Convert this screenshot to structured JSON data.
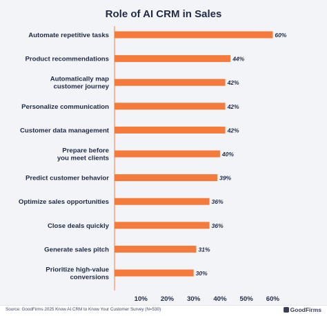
{
  "chart_data": {
    "type": "bar",
    "orientation": "horizontal",
    "title": "Role of AI CRM in Sales",
    "categories": [
      [
        "Automate repetitive tasks"
      ],
      [
        "Product recommendations"
      ],
      [
        "Automatically map",
        "customer journey"
      ],
      [
        "Personalize communication"
      ],
      [
        "Customer data management"
      ],
      [
        "Prepare before",
        "you meet clients"
      ],
      [
        "Predict customer behavior"
      ],
      [
        "Optimize sales opportunities"
      ],
      [
        "Close deals quickly"
      ],
      [
        "Generate sales pitch"
      ],
      [
        "Prioritize high-value",
        "conversions"
      ]
    ],
    "values": [
      60,
      44,
      42,
      42,
      42,
      40,
      39,
      36,
      36,
      31,
      30
    ],
    "value_labels": [
      "60%",
      "44%",
      "42%",
      "42%",
      "42%",
      "40%",
      "39%",
      "36%",
      "36%",
      "31%",
      "30%"
    ],
    "xticks": [
      10,
      20,
      30,
      40,
      50,
      60
    ],
    "xtick_labels": [
      "10%",
      "20%",
      "30%",
      "40%",
      "50%",
      "60%"
    ],
    "xlim": [
      0,
      65
    ],
    "grid": false,
    "colors": {
      "bar": "#f47b3c",
      "text": "#1f2a44",
      "axis": "#f47b3c"
    }
  },
  "footer": {
    "source": "Source: GoodFirms 2025 Know AI CRM to Know Your Customer Survey (N=530)",
    "logo": "GoodFirms",
    "logo_icon": "goodfirms-logo-icon"
  }
}
